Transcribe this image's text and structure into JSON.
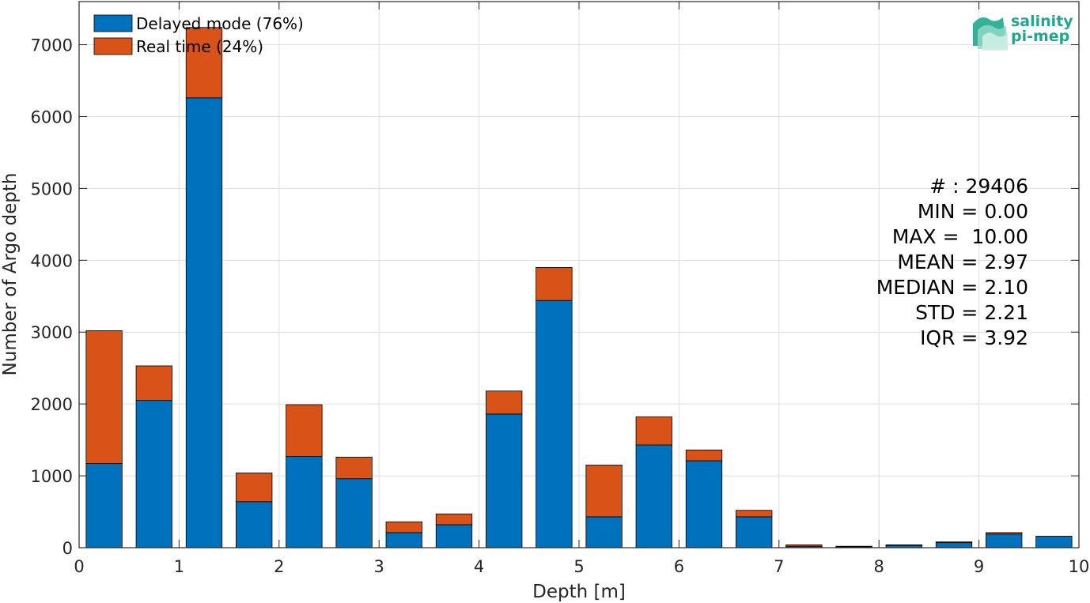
{
  "chart_data": {
    "type": "bar",
    "stacked": true,
    "xlabel": "Depth [m]",
    "ylabel": "Number of Argo depth",
    "xlim": [
      0,
      10
    ],
    "ylim": [
      0,
      7600
    ],
    "x_ticks": [
      "0",
      "1",
      "2",
      "3",
      "4",
      "5",
      "6",
      "7",
      "8",
      "9",
      "10"
    ],
    "y_ticks": [
      "0",
      "1000",
      "2000",
      "3000",
      "4000",
      "5000",
      "6000",
      "7000"
    ],
    "grid": true,
    "legend_position": "top-left",
    "bin_width": 0.5,
    "x": [
      0.25,
      0.75,
      1.25,
      1.75,
      2.25,
      2.75,
      3.25,
      3.75,
      4.25,
      4.75,
      5.25,
      5.75,
      6.25,
      6.75,
      7.25,
      7.75,
      8.25,
      8.75,
      9.25,
      9.75
    ],
    "series": [
      {
        "name": "Delayed mode (76%)",
        "color": "#0072BD",
        "values": [
          1170,
          2050,
          6260,
          640,
          1270,
          960,
          210,
          320,
          1860,
          3440,
          430,
          1430,
          1210,
          430,
          20,
          15,
          35,
          70,
          190,
          160
        ]
      },
      {
        "name": "Real time (24%)",
        "color": "#D95319",
        "values": [
          1850,
          480,
          980,
          400,
          720,
          300,
          150,
          150,
          320,
          460,
          720,
          390,
          150,
          90,
          20,
          5,
          5,
          10,
          20,
          0
        ]
      }
    ],
    "stats": {
      "count": "# : 29406",
      "min": "MIN = 0.00",
      "max": "MAX =  10.00",
      "mean": "MEAN = 2.97",
      "median": "MEDIAN = 2.10",
      "std": "STD = 2.21",
      "iqr": "IQR = 3.92"
    },
    "logo": {
      "line1": "salinity",
      "line2": "pi-mep",
      "color": "#1fa88e"
    }
  }
}
